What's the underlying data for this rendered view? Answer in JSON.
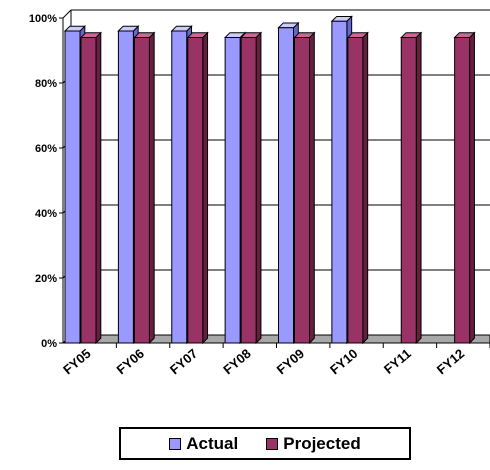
{
  "chart_data": {
    "type": "bar",
    "categories": [
      "FY05",
      "FY06",
      "FY07",
      "FY08",
      "FY09",
      "FY10",
      "FY11",
      "FY12"
    ],
    "series": [
      {
        "name": "Actual",
        "values": [
          96,
          96,
          96,
          94,
          97,
          99,
          null,
          null
        ]
      },
      {
        "name": "Projected",
        "values": [
          94,
          94,
          94,
          94,
          94,
          94,
          94,
          94
        ]
      }
    ],
    "y_ticks": [
      "0%",
      "20%",
      "40%",
      "60%",
      "80%",
      "100%"
    ],
    "ylim": [
      0,
      100
    ],
    "grid": true,
    "legend_position": "bottom"
  },
  "legend": {
    "actual_label": "Actual",
    "projected_label": "Projected"
  },
  "colors": {
    "actual_front": "#9999ff",
    "actual_top": "#ccccff",
    "actual_side": "#6666cc",
    "projected_front": "#993366",
    "projected_top": "#cc6699",
    "projected_side": "#66203f",
    "floor": "#a8a8a8"
  }
}
